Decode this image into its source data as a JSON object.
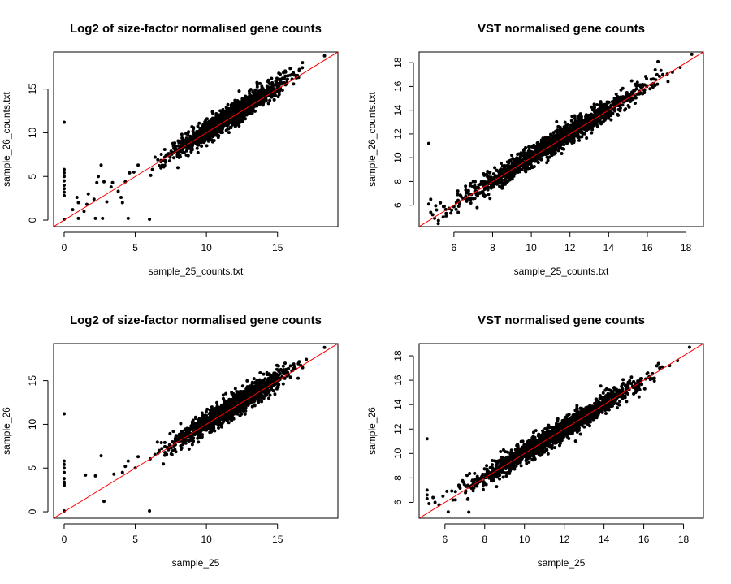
{
  "chart_data": [
    {
      "type": "scatter",
      "title": "Log2 of size-factor normalised gene counts",
      "xlabel": "sample_25_counts.txt",
      "ylabel": "sample_26_counts.txt",
      "xlim": [
        -0.74,
        19.24
      ],
      "ylim": [
        -0.74,
        19.24
      ],
      "xticks": [
        0,
        5,
        10,
        15
      ],
      "yticks": [
        0,
        5,
        10,
        15
      ],
      "reference_line": {
        "slope": 1,
        "intercept": 0,
        "color": "#ff0000"
      },
      "point_color": "#000000",
      "bulk_trend": {
        "x_range": [
          5.8,
          17.4
        ],
        "slope": 1.02,
        "intercept": -0.05,
        "spread": 0.6,
        "n": 1400
      },
      "series": [
        {
          "x": [
            0,
            0,
            0,
            0,
            0,
            0,
            0,
            0,
            0,
            0,
            0.6,
            0.9,
            1.0,
            1.0,
            1.4,
            1.6,
            1.7,
            2.1,
            2.2,
            2.3,
            2.4,
            2.6,
            2.7,
            2.8,
            3.0,
            3.3,
            3.4,
            3.8,
            4.0,
            4.1,
            4.3,
            4.5,
            4.6,
            4.9,
            5.2,
            6.0,
            6.2,
            18.3
          ],
          "y": [
            11.2,
            5.8,
            5.4,
            5.0,
            4.5,
            4.0,
            3.6,
            3.2,
            2.8,
            0.1,
            1.2,
            2.6,
            0.2,
            2.0,
            1.0,
            1.8,
            3.0,
            2.4,
            0.2,
            4.3,
            5.0,
            6.3,
            0.2,
            4.4,
            2.1,
            3.8,
            4.3,
            3.3,
            2.6,
            2.0,
            4.4,
            0.2,
            5.4,
            5.5,
            6.3,
            0.1,
            5.8,
            18.8
          ]
        }
      ]
    },
    {
      "type": "scatter",
      "title": "VST normalised gene counts",
      "xlabel": "sample_25_counts.txt",
      "ylabel": "sample_26_counts.txt",
      "xlim": [
        4.2,
        18.9
      ],
      "ylim": [
        4.2,
        18.9
      ],
      "xticks": [
        6,
        8,
        10,
        12,
        14,
        16,
        18
      ],
      "yticks": [
        6,
        8,
        10,
        12,
        14,
        16,
        18
      ],
      "reference_line": {
        "slope": 1,
        "intercept": 0,
        "color": "#ff0000"
      },
      "point_color": "#000000",
      "bulk_trend": {
        "x_range": [
          4.8,
          17.6
        ],
        "slope": 1.0,
        "intercept": 0.05,
        "spread": 0.45,
        "n": 1500
      },
      "series": [
        {
          "x": [
            4.7,
            4.8,
            4.7,
            4.9,
            5.0,
            5.1,
            4.8,
            5.3,
            5.5,
            5.2,
            5.6,
            6.2,
            6.6,
            7.0,
            7.2,
            7.6,
            15.6,
            16.2,
            16.8,
            17.3,
            17.7,
            18.3
          ],
          "y": [
            11.2,
            6.5,
            6.1,
            5.2,
            4.9,
            5.6,
            5.4,
            6.2,
            5.9,
            4.7,
            5.1,
            7.2,
            7.6,
            8.0,
            5.8,
            7.7,
            15.6,
            16.6,
            17.0,
            17.2,
            17.6,
            18.7
          ]
        }
      ]
    },
    {
      "type": "scatter",
      "title": "Log2 of size-factor normalised gene counts",
      "xlabel": "sample_25",
      "ylabel": "sample_26",
      "xlim": [
        -0.74,
        19.24
      ],
      "ylim": [
        -0.74,
        19.24
      ],
      "xticks": [
        0,
        5,
        10,
        15
      ],
      "yticks": [
        0,
        5,
        10,
        15
      ],
      "reference_line": {
        "slope": 1,
        "intercept": 0,
        "color": "#ff0000"
      },
      "point_color": "#000000",
      "bulk_trend": {
        "x_range": [
          5.8,
          17.4
        ],
        "slope": 1.02,
        "intercept": -0.05,
        "spread": 0.6,
        "n": 1400
      },
      "series": [
        {
          "x": [
            0,
            0,
            0,
            0,
            0,
            0,
            0,
            0,
            0,
            0,
            1.5,
            2.2,
            2.6,
            2.8,
            3.5,
            4.1,
            4.3,
            4.5,
            5.0,
            5.2,
            6.0,
            18.3
          ],
          "y": [
            11.2,
            5.8,
            5.4,
            5.0,
            4.5,
            3.8,
            3.4,
            3.2,
            3.0,
            0.1,
            4.2,
            4.1,
            6.4,
            1.2,
            4.3,
            4.5,
            5.2,
            5.8,
            5.0,
            6.3,
            0.1,
            18.8
          ]
        }
      ]
    },
    {
      "type": "scatter",
      "title": "VST normalised gene counts",
      "xlabel": "sample_25",
      "ylabel": "sample_26",
      "xlim": [
        4.7,
        19.0
      ],
      "ylim": [
        4.7,
        19.0
      ],
      "xticks": [
        6,
        8,
        10,
        12,
        14,
        16,
        18
      ],
      "yticks": [
        6,
        8,
        10,
        12,
        14,
        16,
        18
      ],
      "reference_line": {
        "slope": 1,
        "intercept": 0,
        "color": "#ff0000"
      },
      "point_color": "#000000",
      "bulk_trend": {
        "x_range": [
          5.4,
          17.6
        ],
        "slope": 1.0,
        "intercept": 0.05,
        "spread": 0.45,
        "n": 1500
      },
      "series": [
        {
          "x": [
            5.1,
            5.1,
            5.1,
            5.1,
            5.2,
            5.4,
            5.5,
            5.7,
            5.9,
            6.1,
            6.4,
            6.7,
            7.2,
            15.6,
            16.2,
            16.8,
            17.3,
            17.7,
            18.3
          ],
          "y": [
            11.2,
            7.0,
            6.6,
            6.3,
            5.9,
            6.4,
            6.0,
            5.8,
            6.5,
            6.9,
            6.2,
            7.4,
            5.2,
            15.6,
            16.6,
            17.0,
            17.2,
            17.6,
            18.7
          ]
        }
      ]
    }
  ]
}
